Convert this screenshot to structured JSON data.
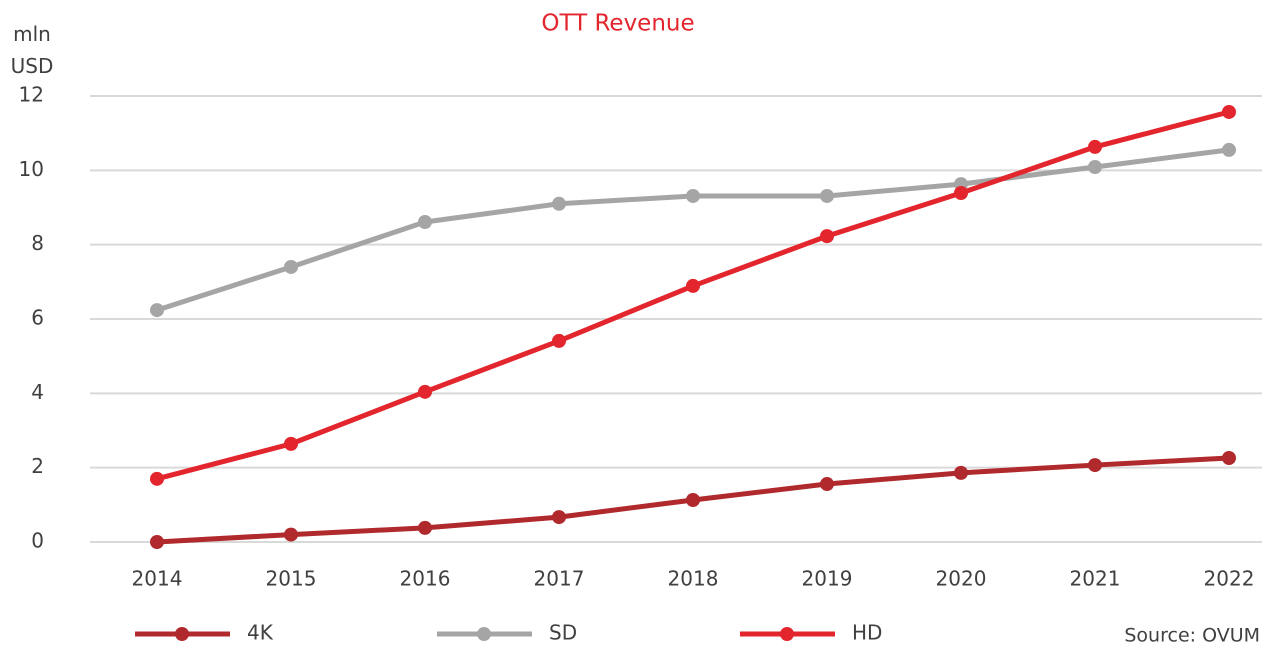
{
  "chart_data": {
    "type": "line",
    "title": "OTT Revenue",
    "y_label": "mln USD",
    "note": "Source: OVUM",
    "categories": [
      "2014",
      "2015",
      "2016",
      "2017",
      "2018",
      "2019",
      "2020",
      "2021",
      "2022"
    ],
    "series": [
      {
        "name": "4K",
        "color": "#b0292d",
        "values": [
          0,
          0.2,
          0.38,
          0.67,
          1.13,
          1.56,
          1.86,
          2.07,
          2.26
        ]
      },
      {
        "name": "SD",
        "color": "#a5a5a5",
        "values": [
          6.24,
          7.4,
          8.61,
          9.1,
          9.31,
          9.31,
          9.63,
          10.09,
          10.55
        ]
      },
      {
        "name": "HD",
        "color": "#e3262d",
        "values": [
          1.7,
          2.64,
          4.04,
          5.41,
          6.89,
          8.23,
          9.39,
          10.63,
          11.57
        ]
      }
    ],
    "ylim": [
      0,
      12
    ],
    "yticks": [
      0,
      2,
      4,
      6,
      8,
      10,
      12
    ],
    "grid": true,
    "legend": "bottom"
  }
}
